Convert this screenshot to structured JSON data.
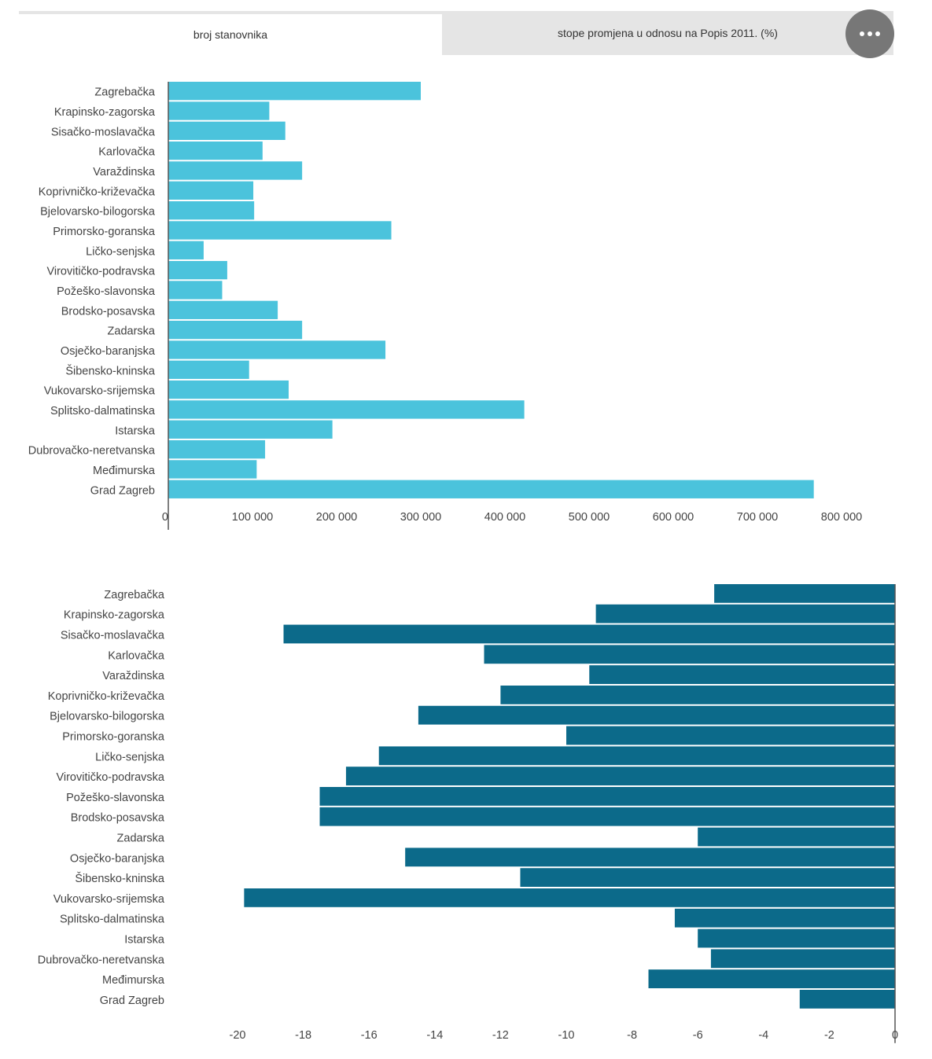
{
  "tabs": [
    {
      "label": "broj stanovnika",
      "active": true
    },
    {
      "label": "stope promjena u odnosu na Popis 2011. (%)",
      "active": false
    }
  ],
  "more_button": {
    "icon": "more-horizontal-icon"
  },
  "chart_data": [
    {
      "type": "bar",
      "orientation": "horizontal",
      "color": "#4bc3dc",
      "categories": [
        "Zagrebačka",
        "Krapinsko-zagorska",
        "Sisačko-moslavačka",
        "Karlovačka",
        "Varaždinska",
        "Koprivničko-križevačka",
        "Bjelovarsko-bilogorska",
        "Primorsko-goranska",
        "Ličko-senjska",
        "Virovitičko-podravska",
        "Požeško-slavonska",
        "Brodsko-posavska",
        "Zadarska",
        "Osječko-baranjska",
        "Šibensko-kninska",
        "Vukovarsko-srijemska",
        "Splitsko-dalmatinska",
        "Istarska",
        "Dubrovačko-neretvanska",
        "Međimurska",
        "Grad Zagreb"
      ],
      "values": [
        300000,
        120000,
        139000,
        112000,
        159000,
        101000,
        102000,
        265000,
        42000,
        70000,
        64000,
        130000,
        159000,
        258000,
        96000,
        143000,
        423000,
        195000,
        115000,
        105000,
        767000
      ],
      "xlim": [
        0,
        800000
      ],
      "xticks": [
        0,
        100000,
        200000,
        300000,
        400000,
        500000,
        600000,
        700000,
        800000
      ],
      "xtick_labels": [
        "0",
        "100 000",
        "200 000",
        "300 000",
        "400 000",
        "500 000",
        "600 000",
        "700 000",
        "800 000"
      ]
    },
    {
      "type": "bar",
      "orientation": "horizontal",
      "color": "#0c6a8a",
      "categories": [
        "Zagrebačka",
        "Krapinsko-zagorska",
        "Sisačko-moslavačka",
        "Karlovačka",
        "Varaždinska",
        "Koprivničko-križevačka",
        "Bjelovarsko-bilogorska",
        "Primorsko-goranska",
        "Ličko-senjska",
        "Virovitičko-podravska",
        "Požeško-slavonska",
        "Brodsko-posavska",
        "Zadarska",
        "Osječko-baranjska",
        "Šibensko-kninska",
        "Vukovarsko-srijemska",
        "Splitsko-dalmatinska",
        "Istarska",
        "Dubrovačko-neretvanska",
        "Međimurska",
        "Grad Zagreb"
      ],
      "values": [
        -5.5,
        -9.1,
        -18.6,
        -12.5,
        -9.3,
        -12.0,
        -14.5,
        -10.0,
        -15.7,
        -16.7,
        -17.5,
        -17.5,
        -6.0,
        -14.9,
        -11.4,
        -19.8,
        -6.7,
        -6.0,
        -5.6,
        -7.5,
        -2.9
      ],
      "xlim": [
        -20,
        0
      ],
      "xticks": [
        -20,
        -18,
        -16,
        -14,
        -12,
        -10,
        -8,
        -6,
        -4,
        -2,
        0
      ],
      "xtick_labels": [
        "-20",
        "-18",
        "-16",
        "-14",
        "-12",
        "-10",
        "-8",
        "-6",
        "-4",
        "-2",
        "0"
      ]
    }
  ]
}
